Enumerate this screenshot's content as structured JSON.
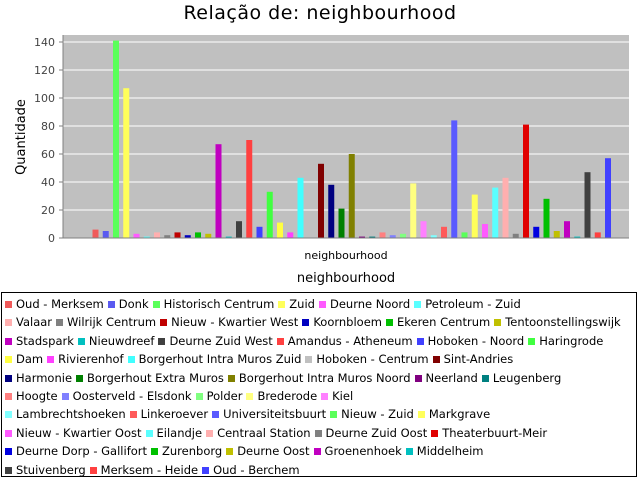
{
  "chart_data": {
    "type": "bar",
    "title": "Relação de: neighbourhood",
    "xlabel": "neighbourhood",
    "ylabel": "Quantidade",
    "categories": [
      "neighbourhood"
    ],
    "ylim": [
      0,
      145
    ],
    "yticks": [
      0,
      20,
      40,
      60,
      80,
      100,
      120,
      140
    ],
    "grid": true,
    "legend_position": "bottom",
    "series": [
      {
        "name": "Oud - Merksem",
        "color": "#f05a5a",
        "values": [
          6
        ]
      },
      {
        "name": "Donk",
        "color": "#5a5af0",
        "values": [
          5
        ]
      },
      {
        "name": "Historisch Centrum",
        "color": "#5aff5a",
        "values": [
          141
        ]
      },
      {
        "name": "Zuid",
        "color": "#ffff5a",
        "values": [
          107
        ]
      },
      {
        "name": "Deurne Noord",
        "color": "#ff5aff",
        "values": [
          3
        ]
      },
      {
        "name": "Petroleum - Zuid",
        "color": "#5affff",
        "values": [
          1
        ]
      },
      {
        "name": "Valaar",
        "color": "#ffafaf",
        "values": [
          4
        ]
      },
      {
        "name": "Wilrijk Centrum",
        "color": "#808080",
        "values": [
          2
        ]
      },
      {
        "name": "Nieuw - Kwartier West",
        "color": "#c00000",
        "values": [
          4
        ]
      },
      {
        "name": "Koornbloem",
        "color": "#0000c0",
        "values": [
          2
        ]
      },
      {
        "name": "Ekeren Centrum",
        "color": "#00c000",
        "values": [
          4
        ]
      },
      {
        "name": "Tentoonstellingswijk",
        "color": "#c0c000",
        "values": [
          3
        ]
      },
      {
        "name": "Stadspark",
        "color": "#c000c0",
        "values": [
          67
        ]
      },
      {
        "name": "Nieuwdreef",
        "color": "#00c0c0",
        "values": [
          1
        ]
      },
      {
        "name": "Deurne Zuid West",
        "color": "#404040",
        "values": [
          12
        ]
      },
      {
        "name": "Amandus - Atheneum",
        "color": "#ff4040",
        "values": [
          70
        ]
      },
      {
        "name": "Hoboken - Noord",
        "color": "#4040ff",
        "values": [
          8
        ]
      },
      {
        "name": "Haringrode",
        "color": "#40ff40",
        "values": [
          33
        ]
      },
      {
        "name": "Dam",
        "color": "#ffff40",
        "values": [
          11
        ]
      },
      {
        "name": "Rivierenhof",
        "color": "#ff40ff",
        "values": [
          4
        ]
      },
      {
        "name": "Borgerhout Intra Muros Zuid",
        "color": "#40ffff",
        "values": [
          43
        ]
      },
      {
        "name": "Hoboken - Centrum",
        "color": "#c0c0c0",
        "values": [
          3
        ]
      },
      {
        "name": "Sint-Andries",
        "color": "#800000",
        "values": [
          53
        ]
      },
      {
        "name": "Harmonie",
        "color": "#000080",
        "values": [
          38
        ]
      },
      {
        "name": "Borgerhout Extra Muros",
        "color": "#008000",
        "values": [
          21
        ]
      },
      {
        "name": "Borgerhout Intra Muros Noord",
        "color": "#808000",
        "values": [
          60
        ]
      },
      {
        "name": "Neerland",
        "color": "#800080",
        "values": [
          1
        ]
      },
      {
        "name": "Leugenberg",
        "color": "#008080",
        "values": [
          1
        ]
      },
      {
        "name": "Hoogte",
        "color": "#ff8080",
        "values": [
          4
        ]
      },
      {
        "name": "Oosterveld - Elsdonk",
        "color": "#8080ff",
        "values": [
          2
        ]
      },
      {
        "name": "Polder",
        "color": "#80ff80",
        "values": [
          3
        ]
      },
      {
        "name": "Brederode",
        "color": "#ffff80",
        "values": [
          39
        ]
      },
      {
        "name": "Kiel",
        "color": "#ff80ff",
        "values": [
          12
        ]
      },
      {
        "name": "Lambrechtshoeken",
        "color": "#80ffff",
        "values": [
          2
        ]
      },
      {
        "name": "Linkeroever",
        "color": "#ff5a5a",
        "values": [
          8
        ]
      },
      {
        "name": "Universiteitsbuurt",
        "color": "#5a5aff",
        "values": [
          84
        ]
      },
      {
        "name": "Nieuw - Zuid",
        "color": "#5aff5a",
        "values": [
          4
        ]
      },
      {
        "name": "Markgrave",
        "color": "#ffff5a",
        "values": [
          31
        ]
      },
      {
        "name": "Nieuw - Kwartier Oost",
        "color": "#ff5aff",
        "values": [
          10
        ]
      },
      {
        "name": "Eilandje",
        "color": "#5affff",
        "values": [
          36
        ]
      },
      {
        "name": "Centraal Station",
        "color": "#ffafaf",
        "values": [
          43
        ]
      },
      {
        "name": "Deurne Zuid Oost",
        "color": "#808080",
        "values": [
          3
        ]
      },
      {
        "name": "Theaterbuurt-Meir",
        "color": "#e00000",
        "values": [
          81
        ]
      },
      {
        "name": "Deurne Dorp - Gallifort",
        "color": "#0000e0",
        "values": [
          8
        ]
      },
      {
        "name": "Zurenborg",
        "color": "#00c000",
        "values": [
          28
        ]
      },
      {
        "name": "Deurne Oost",
        "color": "#c0c000",
        "values": [
          5
        ]
      },
      {
        "name": "Groenenhoek",
        "color": "#c000c0",
        "values": [
          12
        ]
      },
      {
        "name": "Middelheim",
        "color": "#00c0c0",
        "values": [
          1
        ]
      },
      {
        "name": "Stuivenberg",
        "color": "#404040",
        "values": [
          47
        ]
      },
      {
        "name": "Merksem - Heide",
        "color": "#ff4040",
        "values": [
          4
        ]
      },
      {
        "name": "Oud - Berchem",
        "color": "#4040ff",
        "values": [
          57
        ]
      }
    ]
  }
}
